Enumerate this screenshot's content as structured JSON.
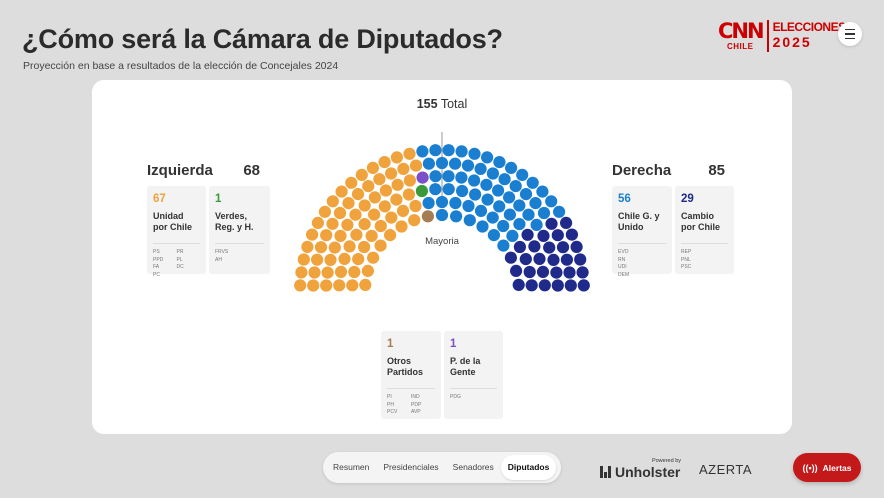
{
  "header": {
    "title": "¿Cómo será la Cámara de Diputados?",
    "subtitle": "Proyección en base a resultados de la elección de Concejales 2024"
  },
  "brand": {
    "logo": "CNN",
    "logo_sub": "CHILE",
    "event_l1": "ELECCIONES",
    "event_l2": "2025"
  },
  "menu_icon": "hamburger-icon",
  "chamber": {
    "total_value": "155",
    "total_label": "Total",
    "majority_label": "Mayoria",
    "colors": {
      "unidad": "#f0a23c",
      "verdes": "#3a9a3a",
      "otros": "#a67c52",
      "gente": "#7a4fc8",
      "chile_vamos": "#1a7fd1",
      "cambio": "#1f2a8a"
    },
    "seats": {
      "unidad": 67,
      "verdes": 1,
      "otros": 1,
      "gente": 1,
      "chile_vamos": 56,
      "cambio": 29
    }
  },
  "left": {
    "name": "Izquierda",
    "total": "68",
    "parties": [
      {
        "count": "67",
        "name": "Unidad por Chile",
        "subs": [
          "PS",
          "PR",
          "PPD",
          "PL",
          "FA",
          "DC",
          "PC"
        ]
      },
      {
        "count": "1",
        "name": "Verdes, Reg. y H.",
        "subs": [
          "FRVS",
          "AH"
        ]
      }
    ]
  },
  "right": {
    "name": "Derecha",
    "total": "85",
    "parties": [
      {
        "count": "56",
        "name": "Chile G. y Unido",
        "subs": [
          "EVO",
          "RN",
          "UDI",
          "DEM"
        ]
      },
      {
        "count": "29",
        "name": "Cambio por Chile",
        "subs": [
          "REP",
          "PNL",
          "PSC"
        ]
      }
    ]
  },
  "center": {
    "parties": [
      {
        "count": "1",
        "name": "Otros Partidos",
        "subs": [
          "PI",
          "IND",
          "PH",
          "PDP",
          "PCV",
          "AVP"
        ]
      },
      {
        "count": "1",
        "name": "P. de la Gente",
        "subs": [
          "PDG"
        ]
      }
    ]
  },
  "nav": {
    "tabs": [
      "Resumen",
      "Presidenciales",
      "Senadores",
      "Diputados"
    ],
    "active": "Diputados"
  },
  "footer": {
    "powered_by": "Powered by",
    "unholster": "Unholster",
    "azerta": "AZERTA",
    "alerts_label": "Alertas",
    "alerts_icon": "broadcast-icon"
  }
}
